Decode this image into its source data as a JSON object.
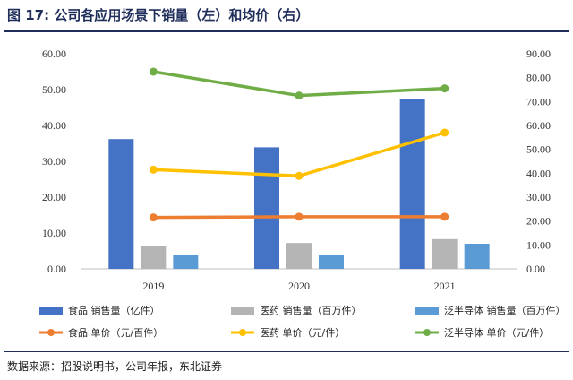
{
  "figure": {
    "title": "图 17:  公司各应用场景下销量（左）和均价（右）",
    "source": "数据来源：招股说明书，公司年报，东北证券"
  },
  "chart_data": {
    "type": "bar",
    "categories": [
      "2019",
      "2020",
      "2021"
    ],
    "y_left": {
      "ticks": [
        "0.00",
        "10.00",
        "20.00",
        "30.00",
        "40.00",
        "50.00",
        "60.00"
      ],
      "lim": [
        0,
        60
      ]
    },
    "y_right": {
      "ticks": [
        "0.00",
        "10.00",
        "20.00",
        "30.00",
        "40.00",
        "50.00",
        "60.00",
        "70.00",
        "80.00",
        "90.00"
      ],
      "lim": [
        0,
        90
      ]
    },
    "bar_series": [
      {
        "name": "食品 销售量（亿件）",
        "color": "#4472c4",
        "values": [
          36.2,
          33.9,
          47.5
        ]
      },
      {
        "name": "医药 销售量（百万件）",
        "color": "#b4b4b4",
        "values": [
          6.3,
          7.2,
          8.3
        ]
      },
      {
        "name": "泛半导体 销售量（百万件）",
        "color": "#5b9bd5",
        "values": [
          4.0,
          3.9,
          7.0
        ]
      }
    ],
    "line_series": [
      {
        "name": "食品 单价（元/百件）",
        "color": "#ed7d31",
        "values": [
          21.5,
          21.8,
          21.8
        ]
      },
      {
        "name": "医药 单价（元/件）",
        "color": "#ffc000",
        "values": [
          41.5,
          38.9,
          57.0
        ]
      },
      {
        "name": "泛半导体 单价（元/件）",
        "color": "#70ad47",
        "values": [
          82.5,
          72.5,
          75.5
        ]
      }
    ],
    "grid": false,
    "legend_position": "bottom"
  }
}
